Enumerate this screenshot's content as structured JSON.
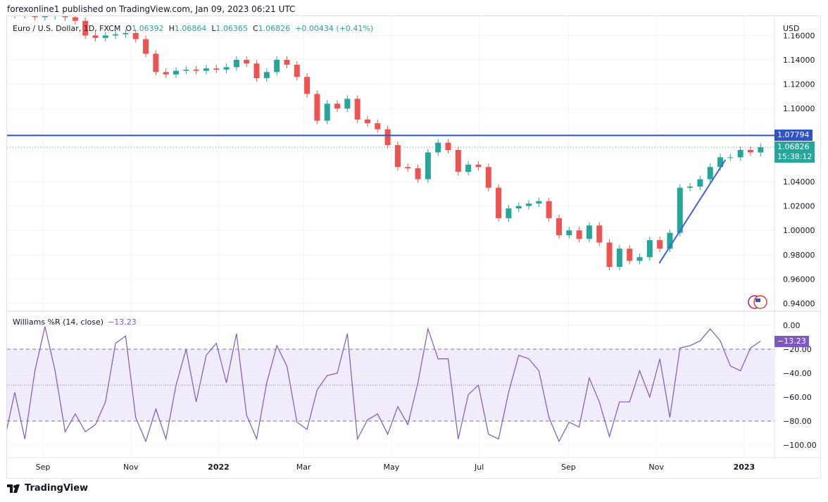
{
  "publisher_line": "forexonline1 published on TradingView.com, Jan 09, 2023 06:21 UTC",
  "legend": {
    "symbol": "Euro / U.S. Dollar, 1D, FXCM",
    "o_label": "O",
    "o": "1.06392",
    "h_label": "H",
    "h": "1.06864",
    "l_label": "L",
    "l": "1.06365",
    "c_label": "C",
    "c": "1.06826",
    "change": "+0.00434 (+0.41%)"
  },
  "currency": "USD",
  "price_tags": {
    "resistance": "1.07794",
    "last": "1.06826",
    "countdown": "15:38:12"
  },
  "indicator": {
    "name": "Williams %R (14, close)",
    "value": "−13.23",
    "tag": "−13.23"
  },
  "brand": "TradingView",
  "colors": {
    "up": "#26a69a",
    "down": "#ef5350",
    "line": "#2f54c9",
    "trend": "#3c63d9",
    "wr": "#7e57c2",
    "band": "#f1ecfb"
  },
  "chart_data": [
    {
      "type": "candlestick",
      "title": "Euro / U.S. Dollar, 1D, FXCM",
      "ylabel": "USD",
      "ylim": [
        0.93,
        1.17
      ],
      "y_ticks": [
        "1.16000",
        "1.14000",
        "1.12000",
        "1.10000",
        "1.04000",
        "1.02000",
        "1.00000",
        "0.98000",
        "0.96000",
        "0.94000"
      ],
      "x_ticks": [
        "Sep",
        "Nov",
        "2022",
        "Mar",
        "May",
        "Jul",
        "Sep",
        "Nov",
        "2023"
      ],
      "x_tick_dates": [
        "2021-09-01",
        "2021-11-01",
        "2022-01-01",
        "2022-03-01",
        "2022-05-01",
        "2022-07-01",
        "2022-09-01",
        "2022-11-01",
        "2023-01-01"
      ],
      "last_ohlc": {
        "open": 1.06392,
        "high": 1.06864,
        "low": 1.06365,
        "close": 1.06826
      },
      "horizontal_line": 1.07794,
      "trendline": [
        [
          "2022-11-03",
          0.973
        ],
        [
          "2022-12-19",
          1.058
        ]
      ],
      "dates": [
        "2021-08-02",
        "2021-08-09",
        "2021-08-16",
        "2021-08-23",
        "2021-08-30",
        "2021-09-06",
        "2021-09-13",
        "2021-09-20",
        "2021-09-27",
        "2021-10-04",
        "2021-10-11",
        "2021-10-18",
        "2021-10-25",
        "2021-11-01",
        "2021-11-08",
        "2021-11-15",
        "2021-11-22",
        "2021-11-29",
        "2021-12-06",
        "2021-12-13",
        "2021-12-20",
        "2021-12-27",
        "2022-01-03",
        "2022-01-10",
        "2022-01-17",
        "2022-01-24",
        "2022-01-31",
        "2022-02-07",
        "2022-02-14",
        "2022-02-21",
        "2022-02-28",
        "2022-03-07",
        "2022-03-14",
        "2022-03-21",
        "2022-03-28",
        "2022-04-04",
        "2022-04-11",
        "2022-04-18",
        "2022-04-25",
        "2022-05-02",
        "2022-05-09",
        "2022-05-16",
        "2022-05-23",
        "2022-05-30",
        "2022-06-06",
        "2022-06-13",
        "2022-06-20",
        "2022-06-27",
        "2022-07-04",
        "2022-07-11",
        "2022-07-18",
        "2022-07-25",
        "2022-08-01",
        "2022-08-08",
        "2022-08-15",
        "2022-08-22",
        "2022-08-29",
        "2022-09-05",
        "2022-09-12",
        "2022-09-19",
        "2022-09-26",
        "2022-10-03",
        "2022-10-10",
        "2022-10-17",
        "2022-10-24",
        "2022-10-31",
        "2022-11-07",
        "2022-11-14",
        "2022-11-21",
        "2022-11-28",
        "2022-12-05",
        "2022-12-12",
        "2022-12-19",
        "2022-12-26",
        "2023-01-02",
        "2023-01-09"
      ],
      "close": [
        1.178,
        1.177,
        1.178,
        1.175,
        1.176,
        1.177,
        1.175,
        1.172,
        1.16,
        1.158,
        1.16,
        1.161,
        1.162,
        1.157,
        1.145,
        1.13,
        1.128,
        1.131,
        1.132,
        1.131,
        1.133,
        1.132,
        1.134,
        1.14,
        1.137,
        1.125,
        1.13,
        1.14,
        1.136,
        1.126,
        1.112,
        1.09,
        1.104,
        1.1,
        1.108,
        1.091,
        1.088,
        1.083,
        1.07,
        1.052,
        1.051,
        1.042,
        1.064,
        1.072,
        1.066,
        1.048,
        1.054,
        1.052,
        1.035,
        1.01,
        1.018,
        1.02,
        1.022,
        1.024,
        1.01,
        0.996,
        1.0,
        0.993,
        1.004,
        0.99,
        0.97,
        0.985,
        0.975,
        0.978,
        0.992,
        0.985,
        0.998,
        1.035,
        1.036,
        1.042,
        1.052,
        1.06,
        1.06,
        1.066,
        1.064,
        1.06826
      ]
    },
    {
      "type": "line",
      "title": "Williams %R (14, close)",
      "ylim": [
        -100,
        0
      ],
      "y_ticks": [
        "0.00",
        "-20.00",
        "-40.00",
        "-60.00",
        "-80.00",
        "-100.00"
      ],
      "bands": {
        "upper": -20,
        "middle": -50,
        "lower": -80
      },
      "values": [
        -95,
        -56,
        -95,
        -38,
        -1,
        -38,
        -89,
        -74,
        -89,
        -83,
        -64,
        -15,
        -9,
        -77,
        -97,
        -70,
        -95,
        -50,
        -20,
        -64,
        -25,
        -15,
        -48,
        -7,
        -75,
        -95,
        -48,
        -17,
        -34,
        -81,
        -87,
        -54,
        -42,
        -40,
        -7,
        -95,
        -79,
        -74,
        -91,
        -68,
        -83,
        -48,
        -3,
        -28,
        -28,
        -95,
        -58,
        -50,
        -91,
        -95,
        -56,
        -25,
        -28,
        -38,
        -77,
        -97,
        -81,
        -85,
        -44,
        -64,
        -93,
        -64,
        -64,
        -38,
        -60,
        -28,
        -77,
        -19,
        -17,
        -13,
        -3,
        -13,
        -34,
        -38,
        -19,
        -13.23
      ]
    }
  ]
}
